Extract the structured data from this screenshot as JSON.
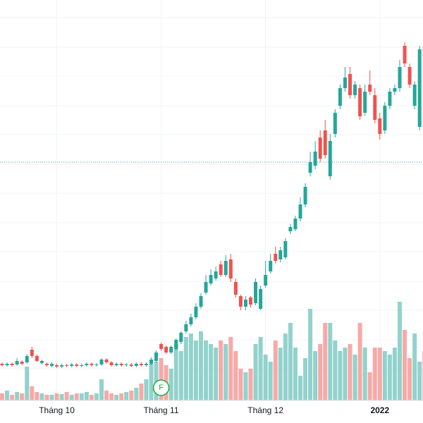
{
  "chart_data": {
    "type": "candlestick",
    "categories": [
      null,
      null,
      null,
      null,
      null,
      null,
      null,
      null,
      null,
      null,
      null,
      "Tháng 10",
      null,
      null,
      null,
      null,
      null,
      null,
      null,
      null,
      null,
      null,
      null,
      null,
      null,
      null,
      null,
      null,
      null,
      null,
      null,
      null,
      "Tháng 11",
      null,
      null,
      null,
      null,
      null,
      null,
      null,
      null,
      null,
      null,
      null,
      null,
      null,
      null,
      null,
      null,
      null,
      null,
      null,
      null,
      "Tháng 12",
      null,
      null,
      null,
      null,
      null,
      null,
      null,
      null,
      null,
      null,
      null,
      null,
      null,
      null,
      null,
      null,
      null,
      null,
      null,
      null,
      null,
      null,
      "2022",
      null,
      null,
      null,
      null,
      null,
      null,
      null,
      null,
      null
    ],
    "open": [
      84,
      82,
      84,
      83,
      87,
      86,
      104,
      95,
      85,
      84,
      81,
      82,
      80,
      82,
      81,
      83,
      81,
      82,
      84,
      82,
      83,
      90,
      86,
      82,
      84,
      82,
      83,
      81,
      84,
      82,
      84,
      88,
      112,
      108,
      100,
      105,
      115,
      130,
      140,
      150,
      165,
      185,
      198,
      205,
      225,
      210,
      232,
      200,
      180,
      165,
      178,
      170,
      162,
      195,
      215,
      240,
      232,
      235,
      272,
      275,
      290,
      310,
      355,
      365,
      405,
      415,
      350,
      410,
      450,
      475,
      495,
      465,
      475,
      440,
      480,
      465,
      432,
      415,
      450,
      470,
      475,
      535,
      505,
      450,
      420,
      535
    ],
    "high": [
      86,
      86,
      86,
      92,
      89,
      98,
      108,
      97,
      90,
      86,
      86,
      84,
      84,
      84,
      85,
      85,
      84,
      86,
      86,
      85,
      92,
      92,
      88,
      86,
      86,
      85,
      85,
      86,
      86,
      86,
      93,
      103,
      114,
      110,
      110,
      120,
      130,
      145,
      155,
      170,
      184,
      210,
      218,
      222,
      230,
      238,
      240,
      205,
      182,
      180,
      180,
      205,
      195,
      230,
      240,
      250,
      250,
      262,
      282,
      294,
      320,
      340,
      385,
      400,
      415,
      430,
      410,
      445,
      480,
      505,
      505,
      485,
      480,
      480,
      500,
      475,
      440,
      455,
      475,
      480,
      515,
      540,
      510,
      485,
      535,
      540
    ],
    "low": [
      80,
      80,
      80,
      81,
      82,
      84,
      92,
      86,
      83,
      80,
      79,
      78,
      78,
      79,
      79,
      79,
      79,
      80,
      80,
      80,
      81,
      84,
      80,
      80,
      80,
      80,
      79,
      79,
      80,
      80,
      82,
      86,
      102,
      98,
      98,
      103,
      112,
      127,
      137,
      147,
      162,
      182,
      195,
      202,
      207,
      207,
      200,
      178,
      160,
      160,
      164,
      167,
      160,
      192,
      212,
      226,
      228,
      232,
      268,
      272,
      286,
      306,
      350,
      360,
      370,
      375,
      345,
      405,
      445,
      470,
      460,
      460,
      430,
      436,
      465,
      425,
      402,
      410,
      445,
      465,
      470,
      505,
      475,
      445,
      415,
      515
    ],
    "close": [
      82,
      84,
      82,
      88,
      84,
      95,
      95,
      88,
      88,
      82,
      84,
      80,
      82,
      81,
      83,
      81,
      82,
      84,
      82,
      83,
      90,
      86,
      82,
      84,
      82,
      83,
      81,
      84,
      82,
      84,
      90,
      100,
      105,
      100,
      108,
      118,
      128,
      140,
      150,
      165,
      180,
      200,
      210,
      215,
      210,
      230,
      205,
      182,
      165,
      175,
      168,
      200,
      190,
      210,
      230,
      230,
      245,
      258,
      278,
      290,
      310,
      335,
      370,
      385,
      375,
      380,
      400,
      440,
      475,
      490,
      465,
      480,
      435,
      470,
      470,
      430,
      410,
      450,
      470,
      475,
      505,
      510,
      480,
      480,
      530,
      520
    ],
    "volume": [
      10,
      14,
      8,
      12,
      10,
      48,
      20,
      12,
      10,
      8,
      8,
      10,
      9,
      12,
      8,
      10,
      10,
      12,
      8,
      10,
      30,
      14,
      10,
      8,
      10,
      12,
      14,
      18,
      24,
      30,
      52,
      55,
      60,
      50,
      45,
      80,
      70,
      90,
      95,
      85,
      98,
      85,
      80,
      75,
      85,
      80,
      90,
      70,
      45,
      40,
      45,
      80,
      90,
      65,
      55,
      85,
      75,
      95,
      110,
      75,
      35,
      60,
      130,
      70,
      80,
      110,
      110,
      85,
      70,
      75,
      80,
      65,
      110,
      75,
      40,
      75,
      75,
      70,
      65,
      75,
      140,
      100,
      60,
      95,
      55,
      70
    ],
    "up_color": "#26a69a",
    "down_color": "#ef5350",
    "up_volume_color": "#92d2cc",
    "down_volume_color": "#f7a9a7",
    "ylim": [
      0,
      600
    ],
    "volume_ylim": [
      0,
      150
    ],
    "yticks": [
      575,
      533,
      492,
      450,
      409,
      367,
      326,
      284,
      243,
      201,
      160,
      118,
      77
    ],
    "grid": true,
    "price_line": 370,
    "markers": [
      {
        "index": 32,
        "label": "F"
      }
    ]
  }
}
